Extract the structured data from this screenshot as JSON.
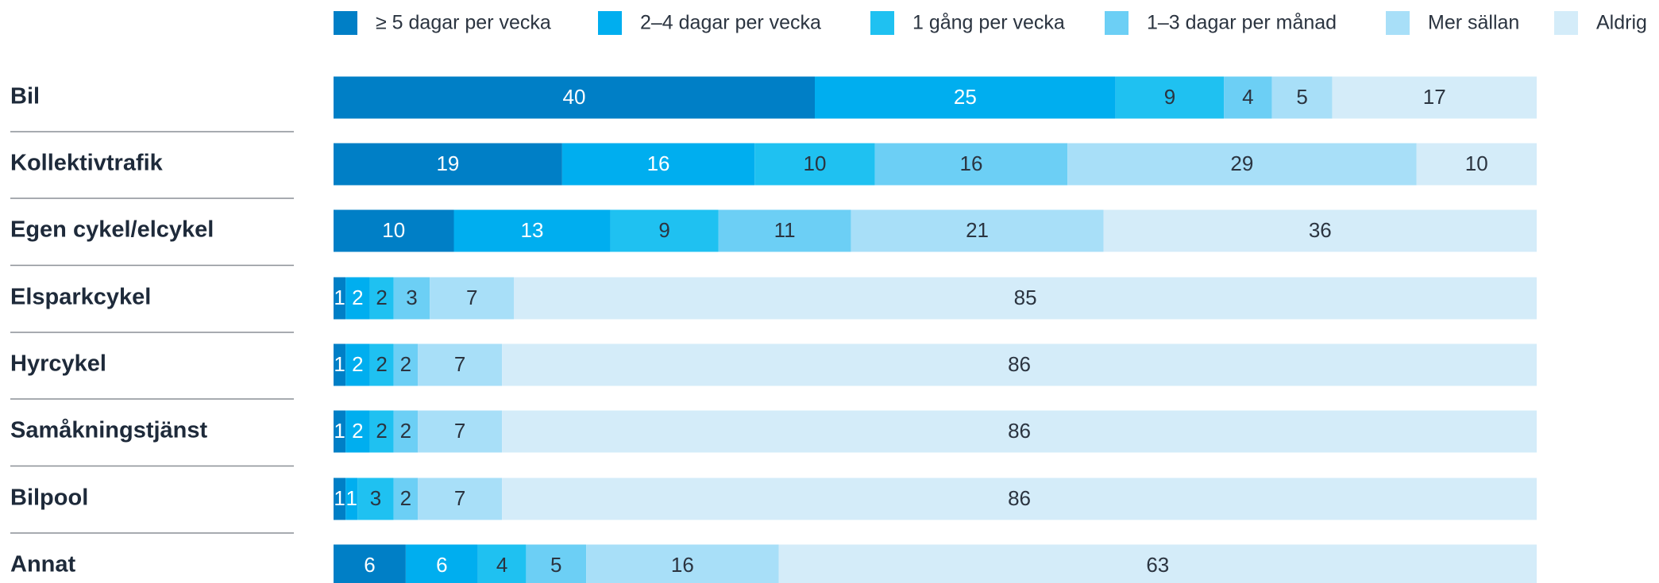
{
  "chart_data": {
    "type": "stacked-bar-horizontal",
    "categories": [
      "Bil",
      "Kollektivtrafik",
      "Egen cykel/elcykel",
      "Elsparkcykel",
      "Hyrcykel",
      "Samåkningstjänst",
      "Bilpool",
      "Annat"
    ],
    "xlim": [
      0,
      100
    ],
    "legend": "top",
    "series": [
      {
        "name": "≥ 5 dagar per vecka",
        "color": "#007fc6",
        "label_color": "#ffffff",
        "values": [
          40,
          19,
          10,
          1,
          1,
          1,
          1,
          6
        ]
      },
      {
        "name": "2–4 dagar per vecka",
        "color": "#00aeef",
        "label_color": "#ffffff",
        "values": [
          25,
          16,
          13,
          2,
          2,
          2,
          1,
          6
        ]
      },
      {
        "name": "1 gång per vecka",
        "color": "#1fc1f1",
        "label_color": "#2b3440",
        "values": [
          9,
          10,
          9,
          2,
          2,
          2,
          3,
          4
        ]
      },
      {
        "name": "1–3 dagar per månad",
        "color": "#6ccff5",
        "label_color": "#2b3440",
        "values": [
          4,
          16,
          11,
          3,
          2,
          2,
          2,
          5
        ]
      },
      {
        "name": "Mer sällan",
        "color": "#a8dff8",
        "label_color": "#2b3440",
        "values": [
          5,
          29,
          21,
          7,
          7,
          7,
          7,
          16
        ]
      },
      {
        "name": "Aldrig",
        "color": "#d4ecf9",
        "label_color": "#2b3440",
        "values": [
          17,
          10,
          36,
          85,
          86,
          86,
          86,
          63
        ]
      }
    ]
  }
}
